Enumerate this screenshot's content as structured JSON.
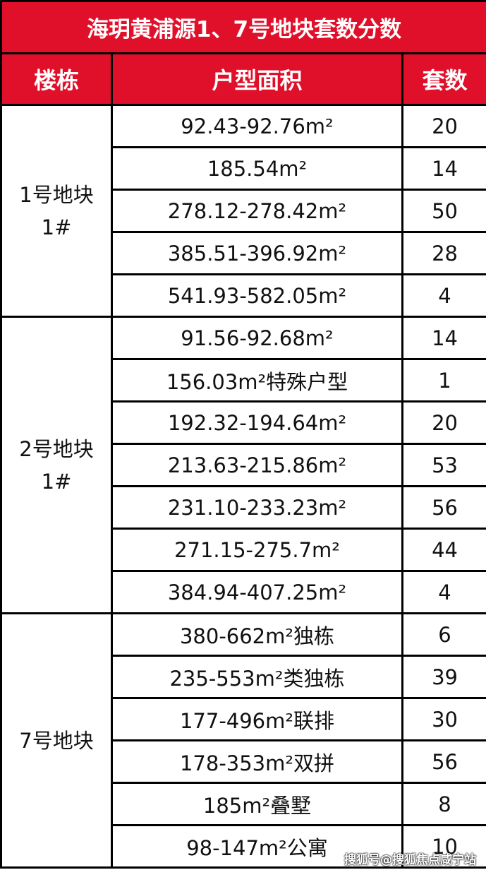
{
  "title": "海玥黄浦源1、7号地块套数分数",
  "headers": {
    "building": "楼栋",
    "area": "户型面积",
    "count": "套数"
  },
  "colors": {
    "header_bg": "#e0102a",
    "header_text": "#ffffff",
    "border": "#000000"
  },
  "groups": [
    {
      "name": "1号地块",
      "sub": "1#",
      "rows": [
        {
          "area": "92.43-92.76m²",
          "count": "20"
        },
        {
          "area": "185.54m²",
          "count": "14"
        },
        {
          "area": "278.12-278.42m²",
          "count": "50"
        },
        {
          "area": "385.51-396.92m²",
          "count": "28"
        },
        {
          "area": "541.93-582.05m²",
          "count": "4"
        }
      ]
    },
    {
      "name": "2号地块",
      "sub": "1#",
      "rows": [
        {
          "area": "91.56-92.68m²",
          "count": "14"
        },
        {
          "area": "156.03m²特殊户型",
          "count": "1"
        },
        {
          "area": "192.32-194.64m²",
          "count": "20"
        },
        {
          "area": "213.63-215.86m²",
          "count": "53"
        },
        {
          "area": "231.10-233.23m²",
          "count": "56"
        },
        {
          "area": "271.15-275.7m²",
          "count": "44"
        },
        {
          "area": "384.94-407.25m²",
          "count": "4"
        }
      ]
    },
    {
      "name": "7号地块",
      "sub": "",
      "rows": [
        {
          "area": "380-662m²独栋",
          "count": "6"
        },
        {
          "area": "235-553m²类独栋",
          "count": "39"
        },
        {
          "area": "177-496m²联排",
          "count": "30"
        },
        {
          "area": "178-353m²双拼",
          "count": "56"
        },
        {
          "area": "185m²叠墅",
          "count": "8"
        },
        {
          "area": "98-147m²公寓",
          "count": "10"
        }
      ]
    }
  ],
  "watermark": "搜狐号@搜狐焦点咸宁站"
}
